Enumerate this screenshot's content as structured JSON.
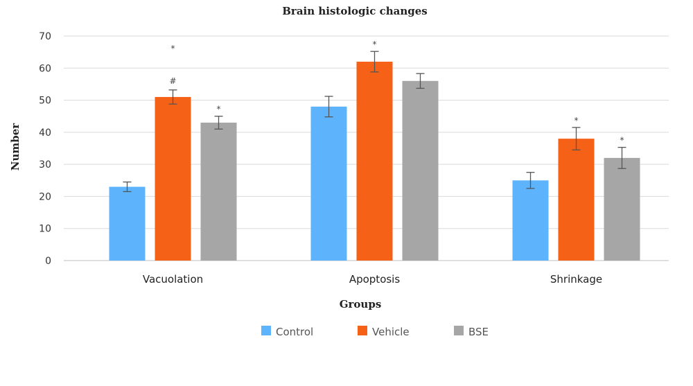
{
  "chart_data": {
    "type": "bar",
    "title": "Brain histologic changes",
    "xlabel": "Groups",
    "ylabel": "Number",
    "ylim": [
      0,
      70
    ],
    "yticks": [
      0,
      10,
      20,
      30,
      40,
      50,
      60,
      70
    ],
    "grid": true,
    "legend_position": "bottom",
    "categories": [
      "Vacuolation",
      "Apoptosis",
      "Shrinkage"
    ],
    "series": [
      {
        "name": "Control",
        "color": "#5EB4FC",
        "values": [
          23,
          48,
          25
        ],
        "errors": [
          1.5,
          3.2,
          2.5
        ],
        "annotations": [
          "",
          "",
          ""
        ]
      },
      {
        "name": "Vehicle",
        "color": "#F66118",
        "values": [
          51,
          62,
          38
        ],
        "errors": [
          2.2,
          3.2,
          3.5
        ],
        "annotations": [
          "#",
          "*",
          "*"
        ]
      },
      {
        "name": "BSE",
        "color": "#A6A6A6",
        "values": [
          43,
          56,
          32
        ],
        "errors": [
          2.0,
          2.3,
          3.3
        ],
        "annotations": [
          "*",
          "",
          "*"
        ]
      }
    ],
    "extra_annotations": [
      {
        "category": 0,
        "series": 1,
        "text": "*"
      }
    ]
  }
}
